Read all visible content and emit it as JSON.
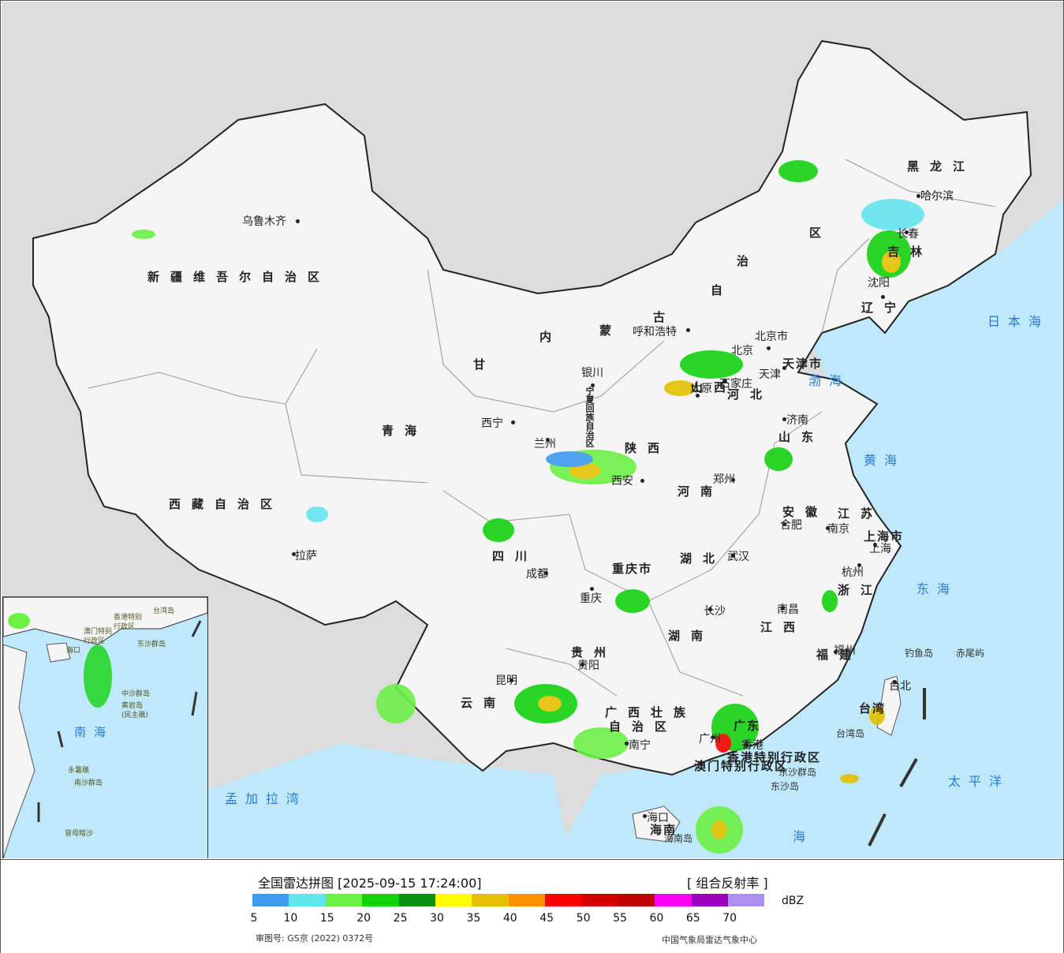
{
  "map": {
    "cities": [
      {
        "name": "乌鲁木齐"
      },
      {
        "name": "呼和浩特"
      },
      {
        "name": "哈尔滨"
      },
      {
        "name": "长春"
      },
      {
        "name": "沈阳"
      },
      {
        "name": "北京市"
      },
      {
        "name": "北京"
      },
      {
        "name": "天津"
      },
      {
        "name": "石家庄"
      },
      {
        "name": "太原"
      },
      {
        "name": "银川"
      },
      {
        "name": "兰州"
      },
      {
        "name": "西宁"
      },
      {
        "name": "济南"
      },
      {
        "name": "西安"
      },
      {
        "name": "郑州"
      },
      {
        "name": "合肥"
      },
      {
        "name": "南京"
      },
      {
        "name": "上海"
      },
      {
        "name": "杭州"
      },
      {
        "name": "武汉"
      },
      {
        "name": "成都"
      },
      {
        "name": "重庆"
      },
      {
        "name": "长沙"
      },
      {
        "name": "南昌"
      },
      {
        "name": "福州"
      },
      {
        "name": "贵阳"
      },
      {
        "name": "昆明"
      },
      {
        "name": "南宁"
      },
      {
        "name": "广州"
      },
      {
        "name": "香港"
      },
      {
        "name": "台北"
      },
      {
        "name": "海口"
      },
      {
        "name": "拉萨"
      }
    ],
    "provinces": [
      "新疆维吾尔自治区",
      "西藏自治区",
      "青海",
      "甘",
      "四川",
      "云南",
      "贵州",
      "广西壮族",
      "自治区",
      "湖南",
      "湖北",
      "江西",
      "福建",
      "浙江",
      "江苏",
      "安徽",
      "山东",
      "河南",
      "陕西",
      "山西",
      "河北",
      "辽宁",
      "吉林",
      "黑龙江",
      "宁夏回族自治区",
      "内",
      "蒙",
      "古",
      "自",
      "治",
      "区",
      "上海市",
      "重庆市",
      "天津市",
      "广东",
      "海南",
      "台湾",
      "香港特别行政区",
      "澳门特别行政区"
    ],
    "seas": [
      "日本海",
      "渤海",
      "黄海",
      "东海",
      "太平洋",
      "孟加拉湾",
      "南海",
      "海"
    ],
    "islands": [
      "钓鱼岛",
      "赤尾屿",
      "台湾岛",
      "东沙群岛",
      "东沙岛",
      "海南岛"
    ],
    "inset": {
      "sea_label": "南海",
      "labels": [
        "中沙群岛",
        "黄岩岛",
        "(民主礁)",
        "永暑礁",
        "南沙群岛",
        "曾母暗沙",
        "东沙群岛",
        "香港特别",
        "行政区",
        "澳门特别",
        "行政区",
        "海口",
        "台湾岛"
      ]
    }
  },
  "legend": {
    "title": "全国雷达拼图 [2025-09-15 17:24:00]",
    "type": "[ 组合反射率 ]",
    "unit": "dBZ",
    "approval": "审图号: GS京 (2022) 0372号",
    "source": "中国气象局雷达气象中心",
    "ticks": [
      "5",
      "10",
      "15",
      "20",
      "25",
      "30",
      "35",
      "40",
      "45",
      "50",
      "55",
      "60",
      "65",
      "70"
    ],
    "colors": [
      "#3f9bf0",
      "#63e5ee",
      "#6cf044",
      "#13d30f",
      "#0b9110",
      "#ffff00",
      "#e4c000",
      "#ff9200",
      "#ff0000",
      "#d60000",
      "#c00000",
      "#ff00f0",
      "#9900b5",
      "#ae90f0"
    ]
  }
}
